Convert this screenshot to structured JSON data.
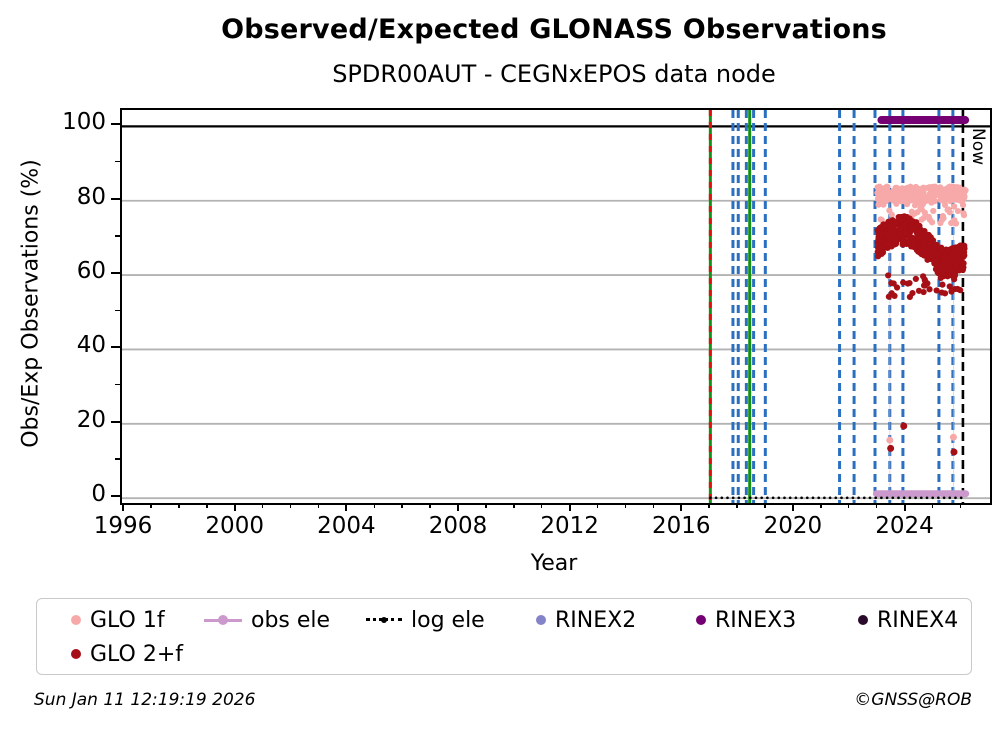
{
  "header": {
    "title": "Observed/Expected GLONASS Observations",
    "subtitle": "SPDR00AUT - CEGNxEPOS data node"
  },
  "footer": {
    "timestamp": "Sun Jan 11 12:19:19 2026",
    "credit": "©GNSS@ROB"
  },
  "legend": {
    "items": [
      {
        "label": "GLO 1f",
        "marker": "dot",
        "color": "#f7a8a8"
      },
      {
        "label": "obs ele",
        "marker": "line-dot",
        "color": "#cc99cc"
      },
      {
        "label": "log ele",
        "marker": "dotted-line",
        "color": "#000000"
      },
      {
        "label": "RINEX2",
        "marker": "dot",
        "color": "#8383c9"
      },
      {
        "label": "RINEX3",
        "marker": "dot",
        "color": "#740074"
      },
      {
        "label": "RINEX4",
        "marker": "dot",
        "color": "#2a0a2a"
      },
      {
        "label": "GLO 2+f",
        "marker": "dot",
        "color": "#a50f15"
      }
    ]
  },
  "chart_data": {
    "type": "scatter",
    "title": "Observed/Expected GLONASS Observations",
    "subtitle": "SPDR00AUT - CEGNxEPOS data node",
    "xlabel": "Year",
    "ylabel": "Obs/Exp Observations (%)",
    "x_range": [
      1995.89,
      2026.99
    ],
    "y_range": [
      -1.3,
      104.4
    ],
    "x_major_ticks": [
      1996,
      2000,
      2004,
      2008,
      2012,
      2016,
      2020,
      2024
    ],
    "x_minor_tick_step": 1,
    "y_major_ticks": [
      0,
      20,
      40,
      60,
      80,
      100
    ],
    "y_minor_ticks": [
      10,
      30,
      50,
      70,
      90
    ],
    "grid": {
      "gray_lines_at": [
        0,
        20,
        40,
        60,
        80
      ],
      "black_line_at": 100,
      "gray_color": "#b3b3b3"
    },
    "now_marker": {
      "x": 2026.02,
      "label": "Now",
      "color": "#000000",
      "style": "dashed"
    },
    "event_lines": {
      "green_solid": [
        2016.97,
        2018.38
      ],
      "red_dashed": [
        2016.97
      ],
      "blue_dashed": [
        2017.78,
        2017.97,
        2018.26,
        2018.52,
        2018.94,
        2021.6,
        2022.12,
        2022.87,
        2023.4,
        2023.87,
        2025.16,
        2025.66
      ],
      "colors": {
        "green": "#149114",
        "red": "#e01010",
        "blue": "#2b70c0"
      }
    },
    "series": [
      {
        "name": "GLO 1f",
        "color": "#f7a8a8",
        "kind": "scatter",
        "bands": [
          {
            "x": [
              2022.95,
              2026.12
            ],
            "y": [
              79.8,
              83.8
            ],
            "n": 270
          },
          {
            "x": [
              2022.95,
              2026.08
            ],
            "y": [
              73.5,
              79.8
            ],
            "n": 46
          }
        ],
        "outliers": [
          [
            2023.4,
            15.6
          ],
          [
            2025.68,
            16.4
          ]
        ],
        "connector_x": [
          2023.4,
          2025.68
        ]
      },
      {
        "name": "GLO 2+f",
        "color": "#a50f15",
        "kind": "scatter-trend",
        "trend": [
          [
            2022.95,
            68.5
          ],
          [
            2023.2,
            70
          ],
          [
            2023.6,
            72
          ],
          [
            2024.0,
            72
          ],
          [
            2024.3,
            71
          ],
          [
            2024.6,
            68.5
          ],
          [
            2024.9,
            67
          ],
          [
            2025.1,
            64.5
          ],
          [
            2025.35,
            63
          ],
          [
            2025.7,
            63.5
          ],
          [
            2026.08,
            65
          ]
        ],
        "spread": 3.8,
        "n": 560,
        "tail": {
          "x": [
            2023.2,
            2026.0
          ],
          "y": [
            54,
            61
          ],
          "n": 34
        },
        "outliers": [
          [
            2023.43,
            13.4
          ],
          [
            2023.9,
            19.4
          ],
          [
            2025.7,
            12.4
          ]
        ]
      },
      {
        "name": "obs ele",
        "color": "#cc99cc",
        "kind": "thick-line",
        "y": 1.2,
        "width": 7,
        "segments": [
          [
            2022.92,
            2025.14
          ],
          [
            2025.28,
            2026.12
          ]
        ]
      },
      {
        "name": "log ele",
        "color": "#000000",
        "kind": "dotted-line",
        "y": 0.1,
        "segments": [
          [
            2016.97,
            2026.05
          ]
        ]
      },
      {
        "name": "RINEX2",
        "color": "#8383c9",
        "kind": "scatter",
        "bands": [],
        "outliers": []
      },
      {
        "name": "RINEX3",
        "color": "#740074",
        "kind": "thick-line",
        "y": 101.7,
        "width": 8,
        "segments": [
          [
            2023.1,
            2025.14
          ],
          [
            2025.25,
            2026.1
          ]
        ]
      },
      {
        "name": "RINEX4",
        "color": "#2a0a2a",
        "kind": "scatter",
        "bands": [],
        "outliers": []
      }
    ]
  }
}
